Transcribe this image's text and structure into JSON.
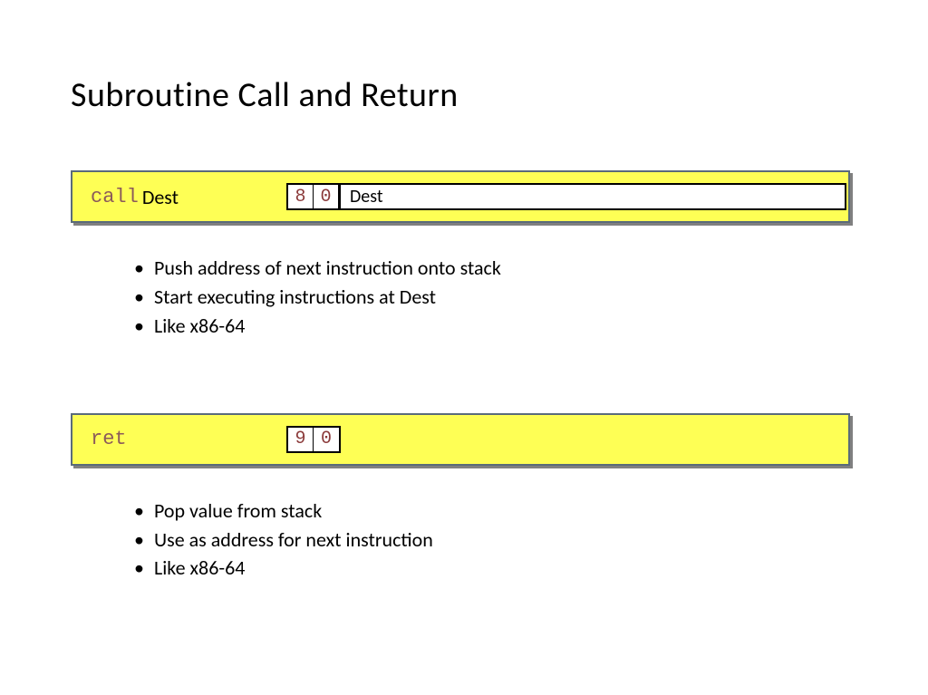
{
  "title": "Subroutine Call and Return",
  "bar_bg": "#feff55",
  "mnemonic_color": "#8b5a5a",
  "border_color": "#5a6b7a",
  "shadow_color": "#808080",
  "instr1": {
    "mnemonic": "call",
    "operand": "Dest",
    "bytes": [
      "8",
      "0"
    ],
    "dest_label": "Dest",
    "has_dest_field": true
  },
  "bullets1": [
    "Push address of next instruction onto stack",
    "Start executing instructions at Dest",
    "Like x86-64"
  ],
  "instr2": {
    "mnemonic": "ret",
    "operand": "",
    "bytes": [
      "9",
      "0"
    ],
    "has_dest_field": false
  },
  "bullets2": [
    "Pop value from stack",
    "Use as address for next instruction",
    "Like x86-64"
  ]
}
